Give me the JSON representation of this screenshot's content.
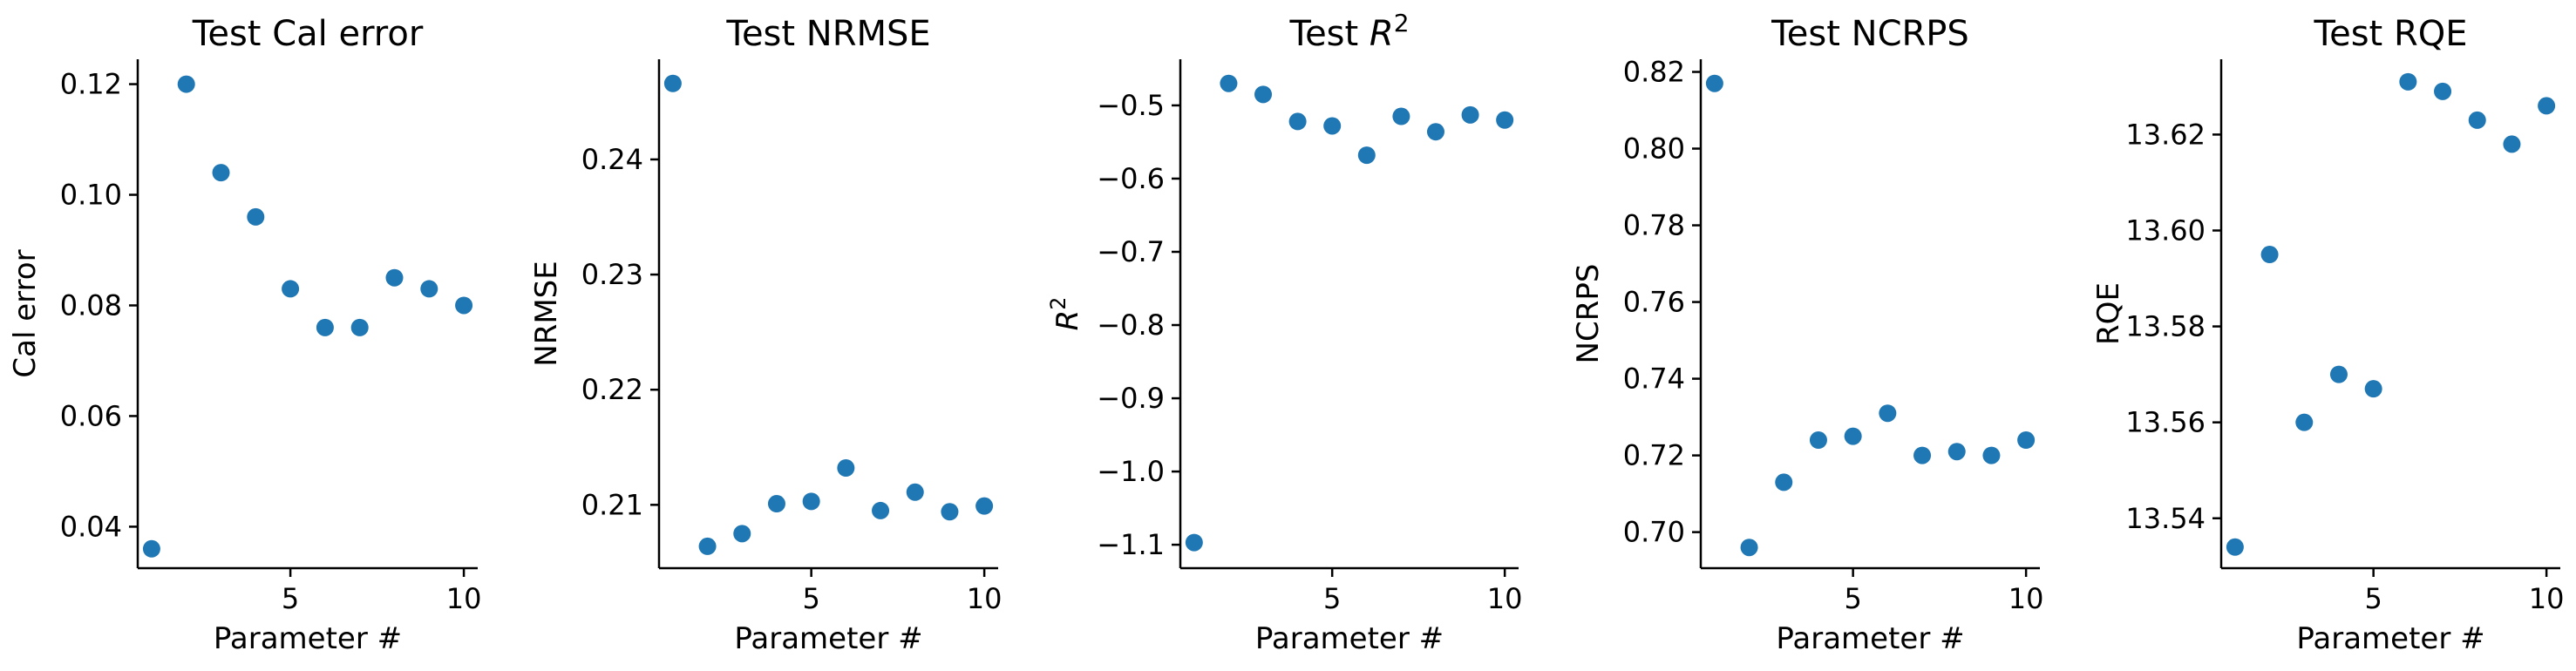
{
  "colors": {
    "marker": "#1f77b4",
    "axis": "#000000",
    "background": "#ffffff"
  },
  "chart_data": [
    {
      "type": "scatter",
      "title": "Test Cal error",
      "title_parts": [
        {
          "t": "Test Cal error"
        }
      ],
      "xlabel": "Parameter #",
      "ylabel": "Cal error",
      "ylabel_parts": [
        {
          "t": "Cal error"
        }
      ],
      "xlim": [
        0.6,
        10.4
      ],
      "ylim": [
        0.0325,
        0.1245
      ],
      "xticks": [
        5,
        10
      ],
      "xtick_labels": [
        "5",
        "10"
      ],
      "yticks": [
        0.04,
        0.06,
        0.08,
        0.1,
        0.12
      ],
      "ytick_labels": [
        "0.04",
        "0.06",
        "0.08",
        "0.10",
        "0.12"
      ],
      "grid": false,
      "legend": "none",
      "x": [
        1,
        2,
        3,
        4,
        5,
        6,
        7,
        8,
        9,
        10
      ],
      "y": [
        0.036,
        0.12,
        0.104,
        0.096,
        0.083,
        0.076,
        0.076,
        0.085,
        0.083,
        0.08
      ]
    },
    {
      "type": "scatter",
      "title": "Test NRMSE",
      "title_parts": [
        {
          "t": "Test NRMSE"
        }
      ],
      "xlabel": "Parameter #",
      "ylabel": "NRMSE",
      "ylabel_parts": [
        {
          "t": "NRMSE"
        }
      ],
      "xlim": [
        0.6,
        10.4
      ],
      "ylim": [
        0.2045,
        0.2487
      ],
      "xticks": [
        5,
        10
      ],
      "xtick_labels": [
        "5",
        "10"
      ],
      "yticks": [
        0.21,
        0.22,
        0.23,
        0.24
      ],
      "ytick_labels": [
        "0.21",
        "0.22",
        "0.23",
        "0.24"
      ],
      "grid": false,
      "legend": "none",
      "x": [
        1,
        2,
        3,
        4,
        5,
        6,
        7,
        8,
        9,
        10
      ],
      "y": [
        0.2466,
        0.2064,
        0.2075,
        0.2101,
        0.2103,
        0.2132,
        0.2095,
        0.2111,
        0.2094,
        0.2099
      ]
    },
    {
      "type": "scatter",
      "title": "Test R2",
      "title_parts": [
        {
          "t": "Test "
        },
        {
          "t": "R",
          "italic": true
        },
        {
          "t": "2",
          "sup": true
        }
      ],
      "xlabel": "Parameter #",
      "ylabel": "R2",
      "ylabel_parts": [
        {
          "t": "R",
          "italic": true
        },
        {
          "t": "2",
          "sup": true
        }
      ],
      "xlim": [
        0.6,
        10.4
      ],
      "ylim": [
        -1.132,
        -0.437
      ],
      "xticks": [
        5,
        10
      ],
      "xtick_labels": [
        "5",
        "10"
      ],
      "yticks": [
        -1.1,
        -1.0,
        -0.9,
        -0.8,
        -0.7,
        -0.6,
        -0.5
      ],
      "ytick_labels": [
        "−1.1",
        "−1.0",
        "−0.9",
        "−0.8",
        "−0.7",
        "−0.6",
        "−0.5"
      ],
      "grid": false,
      "legend": "none",
      "x": [
        1,
        2,
        3,
        4,
        5,
        6,
        7,
        8,
        9,
        10
      ],
      "y": [
        -1.097,
        -0.47,
        -0.485,
        -0.522,
        -0.528,
        -0.568,
        -0.515,
        -0.536,
        -0.513,
        -0.52
      ]
    },
    {
      "type": "scatter",
      "title": "Test NCRPS",
      "title_parts": [
        {
          "t": "Test NCRPS"
        }
      ],
      "xlabel": "Parameter #",
      "ylabel": "NCRPS",
      "ylabel_parts": [
        {
          "t": "NCRPS"
        }
      ],
      "xlim": [
        0.6,
        10.4
      ],
      "ylim": [
        0.6906,
        0.8233
      ],
      "xticks": [
        5,
        10
      ],
      "xtick_labels": [
        "5",
        "10"
      ],
      "yticks": [
        0.7,
        0.72,
        0.74,
        0.76,
        0.78,
        0.8,
        0.82
      ],
      "ytick_labels": [
        "0.70",
        "0.72",
        "0.74",
        "0.76",
        "0.78",
        "0.80",
        "0.82"
      ],
      "grid": false,
      "legend": "none",
      "x": [
        1,
        2,
        3,
        4,
        5,
        6,
        7,
        8,
        9,
        10
      ],
      "y": [
        0.817,
        0.696,
        0.713,
        0.724,
        0.725,
        0.731,
        0.72,
        0.721,
        0.72,
        0.724
      ]
    },
    {
      "type": "scatter",
      "title": "Test RQE",
      "title_parts": [
        {
          "t": "Test RQE"
        }
      ],
      "xlabel": "Parameter #",
      "ylabel": "RQE",
      "ylabel_parts": [
        {
          "t": "RQE"
        }
      ],
      "xlim": [
        0.6,
        10.4
      ],
      "ylim": [
        13.5296,
        13.6357
      ],
      "xticks": [
        5,
        10
      ],
      "xtick_labels": [
        "5",
        "10"
      ],
      "yticks": [
        13.54,
        13.56,
        13.58,
        13.6,
        13.62
      ],
      "ytick_labels": [
        "13.54",
        "13.56",
        "13.58",
        "13.60",
        "13.62"
      ],
      "grid": false,
      "legend": "none",
      "x": [
        1,
        2,
        3,
        4,
        5,
        6,
        7,
        8,
        9,
        10
      ],
      "y": [
        13.534,
        13.595,
        13.56,
        13.57,
        13.567,
        13.631,
        13.629,
        13.623,
        13.618,
        13.626
      ]
    }
  ]
}
